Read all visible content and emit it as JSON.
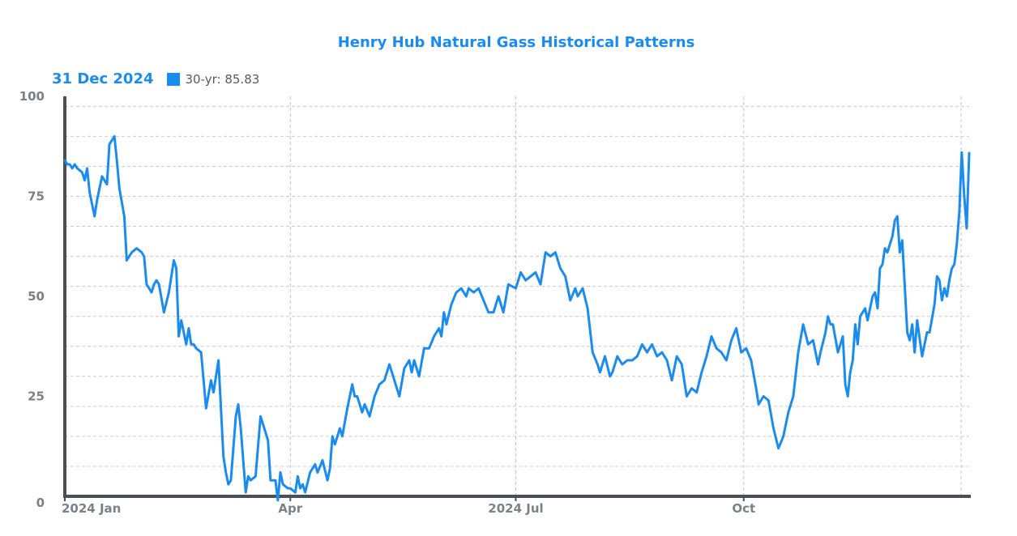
{
  "chart_data": {
    "type": "line",
    "title": "Henry Hub Natural Gass Historical Patterns",
    "legend": {
      "date": "31 Dec 2024",
      "label": "30-yr: 85.83",
      "color": "#1a8cf0",
      "placement": "top-left"
    },
    "ylim": [
      0,
      100
    ],
    "y_ticks": [
      0,
      25,
      50,
      75,
      100
    ],
    "grid": true,
    "x_range": [
      "2024-01-01",
      "2024-12-31"
    ],
    "x_ticks": [
      {
        "date": "2024-01-01",
        "label": "2024 Jan"
      },
      {
        "date": "2024-04-01",
        "label": "Apr"
      },
      {
        "date": "2024-07-01",
        "label": "2024 Jul"
      },
      {
        "date": "2024-10-01",
        "label": "Oct"
      }
    ],
    "minor_grid_dates": [
      "2024-02-01",
      "2024-03-01",
      "2024-05-01",
      "2024-06-01",
      "2024-08-01",
      "2024-09-01",
      "2024-11-01",
      "2024-12-01"
    ],
    "series": [
      {
        "name": "30-yr",
        "color": "#1a8cf0",
        "points": [
          [
            "2024-01-01",
            84
          ],
          [
            "2024-01-02",
            83
          ],
          [
            "2024-01-03",
            83
          ],
          [
            "2024-01-04",
            82
          ],
          [
            "2024-01-05",
            83
          ],
          [
            "2024-01-06",
            82
          ],
          [
            "2024-01-08",
            81
          ],
          [
            "2024-01-09",
            79
          ],
          [
            "2024-01-10",
            82
          ],
          [
            "2024-01-11",
            76
          ],
          [
            "2024-01-13",
            70
          ],
          [
            "2024-01-14",
            74
          ],
          [
            "2024-01-16",
            80
          ],
          [
            "2024-01-17",
            79
          ],
          [
            "2024-01-18",
            78
          ],
          [
            "2024-01-19",
            88
          ],
          [
            "2024-01-21",
            90
          ],
          [
            "2024-01-22",
            84
          ],
          [
            "2024-01-23",
            77
          ],
          [
            "2024-01-25",
            70
          ],
          [
            "2024-01-26",
            59
          ],
          [
            "2024-01-28",
            61
          ],
          [
            "2024-01-30",
            62
          ],
          [
            "2024-02-01",
            61
          ],
          [
            "2024-02-02",
            60
          ],
          [
            "2024-02-03",
            53
          ],
          [
            "2024-02-04",
            52
          ],
          [
            "2024-02-05",
            51
          ],
          [
            "2024-02-06",
            53
          ],
          [
            "2024-02-07",
            54
          ],
          [
            "2024-02-08",
            53
          ],
          [
            "2024-02-10",
            46
          ],
          [
            "2024-02-12",
            51
          ],
          [
            "2024-02-14",
            59
          ],
          [
            "2024-02-15",
            57
          ],
          [
            "2024-02-16",
            40
          ],
          [
            "2024-02-17",
            44
          ],
          [
            "2024-02-19",
            38
          ],
          [
            "2024-02-20",
            42
          ],
          [
            "2024-02-21",
            38
          ],
          [
            "2024-02-22",
            38
          ],
          [
            "2024-02-23",
            37
          ],
          [
            "2024-02-25",
            36
          ],
          [
            "2024-02-27",
            22
          ],
          [
            "2024-02-29",
            29
          ],
          [
            "2024-03-01",
            26
          ],
          [
            "2024-03-03",
            34
          ],
          [
            "2024-03-05",
            10
          ],
          [
            "2024-03-06",
            6
          ],
          [
            "2024-03-07",
            3
          ],
          [
            "2024-03-08",
            4
          ],
          [
            "2024-03-10",
            20
          ],
          [
            "2024-03-11",
            23
          ],
          [
            "2024-03-12",
            17
          ],
          [
            "2024-03-14",
            1
          ],
          [
            "2024-03-15",
            5
          ],
          [
            "2024-03-16",
            4
          ],
          [
            "2024-03-18",
            5
          ],
          [
            "2024-03-20",
            20
          ],
          [
            "2024-03-23",
            14
          ],
          [
            "2024-03-24",
            4
          ],
          [
            "2024-03-26",
            4
          ],
          [
            "2024-03-27",
            -1
          ],
          [
            "2024-03-28",
            6
          ],
          [
            "2024-03-29",
            3
          ],
          [
            "2024-03-31",
            2
          ],
          [
            "2024-04-01",
            2
          ],
          [
            "2024-04-03",
            1
          ],
          [
            "2024-04-04",
            5
          ],
          [
            "2024-04-05",
            2
          ],
          [
            "2024-04-06",
            3
          ],
          [
            "2024-04-07",
            1
          ],
          [
            "2024-04-09",
            6
          ],
          [
            "2024-04-11",
            8
          ],
          [
            "2024-04-12",
            6
          ],
          [
            "2024-04-14",
            9
          ],
          [
            "2024-04-16",
            4
          ],
          [
            "2024-04-17",
            7
          ],
          [
            "2024-04-18",
            15
          ],
          [
            "2024-04-19",
            13
          ],
          [
            "2024-04-21",
            17
          ],
          [
            "2024-04-22",
            15
          ],
          [
            "2024-04-24",
            22
          ],
          [
            "2024-04-26",
            28
          ],
          [
            "2024-04-27",
            25
          ],
          [
            "2024-04-28",
            25
          ],
          [
            "2024-04-30",
            21
          ],
          [
            "2024-05-01",
            23
          ],
          [
            "2024-05-03",
            20
          ],
          [
            "2024-05-05",
            25
          ],
          [
            "2024-05-07",
            28
          ],
          [
            "2024-05-09",
            29
          ],
          [
            "2024-05-11",
            33
          ],
          [
            "2024-05-13",
            29
          ],
          [
            "2024-05-15",
            25
          ],
          [
            "2024-05-17",
            32
          ],
          [
            "2024-05-19",
            34
          ],
          [
            "2024-05-20",
            31
          ],
          [
            "2024-05-21",
            34
          ],
          [
            "2024-05-23",
            30
          ],
          [
            "2024-05-25",
            37
          ],
          [
            "2024-05-27",
            37
          ],
          [
            "2024-05-29",
            40
          ],
          [
            "2024-05-31",
            42
          ],
          [
            "2024-06-01",
            40
          ],
          [
            "2024-06-02",
            46
          ],
          [
            "2024-06-03",
            43
          ],
          [
            "2024-06-05",
            48
          ],
          [
            "2024-06-07",
            51
          ],
          [
            "2024-06-09",
            52
          ],
          [
            "2024-06-11",
            50
          ],
          [
            "2024-06-12",
            52
          ],
          [
            "2024-06-14",
            51
          ],
          [
            "2024-06-16",
            52
          ],
          [
            "2024-06-18",
            49
          ],
          [
            "2024-06-20",
            46
          ],
          [
            "2024-06-22",
            46
          ],
          [
            "2024-06-24",
            50
          ],
          [
            "2024-06-26",
            46
          ],
          [
            "2024-06-28",
            53
          ],
          [
            "2024-07-01",
            52
          ],
          [
            "2024-07-03",
            56
          ],
          [
            "2024-07-05",
            54
          ],
          [
            "2024-07-07",
            55
          ],
          [
            "2024-07-09",
            56
          ],
          [
            "2024-07-11",
            53
          ],
          [
            "2024-07-13",
            61
          ],
          [
            "2024-07-15",
            60
          ],
          [
            "2024-07-17",
            61
          ],
          [
            "2024-07-19",
            57
          ],
          [
            "2024-07-21",
            55
          ],
          [
            "2024-07-23",
            49
          ],
          [
            "2024-07-25",
            52
          ],
          [
            "2024-07-26",
            50
          ],
          [
            "2024-07-28",
            52
          ],
          [
            "2024-07-30",
            47
          ],
          [
            "2024-08-01",
            36
          ],
          [
            "2024-08-03",
            33
          ],
          [
            "2024-08-04",
            31
          ],
          [
            "2024-08-06",
            35
          ],
          [
            "2024-08-08",
            30
          ],
          [
            "2024-08-09",
            31
          ],
          [
            "2024-08-11",
            35
          ],
          [
            "2024-08-13",
            33
          ],
          [
            "2024-08-15",
            34
          ],
          [
            "2024-08-17",
            34
          ],
          [
            "2024-08-19",
            35
          ],
          [
            "2024-08-21",
            38
          ],
          [
            "2024-08-23",
            36
          ],
          [
            "2024-08-25",
            38
          ],
          [
            "2024-08-27",
            35
          ],
          [
            "2024-08-29",
            36
          ],
          [
            "2024-08-31",
            34
          ],
          [
            "2024-09-02",
            29
          ],
          [
            "2024-09-04",
            35
          ],
          [
            "2024-09-06",
            33
          ],
          [
            "2024-09-08",
            25
          ],
          [
            "2024-09-10",
            27
          ],
          [
            "2024-09-12",
            26
          ],
          [
            "2024-09-14",
            31
          ],
          [
            "2024-09-16",
            35
          ],
          [
            "2024-09-18",
            40
          ],
          [
            "2024-09-20",
            37
          ],
          [
            "2024-09-22",
            36
          ],
          [
            "2024-09-24",
            34
          ],
          [
            "2024-09-26",
            39
          ],
          [
            "2024-09-28",
            42
          ],
          [
            "2024-09-30",
            36
          ],
          [
            "2024-10-02",
            37
          ],
          [
            "2024-10-04",
            34
          ],
          [
            "2024-10-06",
            27
          ],
          [
            "2024-10-07",
            23
          ],
          [
            "2024-10-09",
            25
          ],
          [
            "2024-10-11",
            24
          ],
          [
            "2024-10-13",
            17
          ],
          [
            "2024-10-15",
            12
          ],
          [
            "2024-10-17",
            15
          ],
          [
            "2024-10-19",
            21
          ],
          [
            "2024-10-21",
            25
          ],
          [
            "2024-10-23",
            36
          ],
          [
            "2024-10-25",
            43
          ],
          [
            "2024-10-27",
            38
          ],
          [
            "2024-10-29",
            39
          ],
          [
            "2024-10-31",
            33
          ],
          [
            "2024-11-01",
            36
          ],
          [
            "2024-11-03",
            41
          ],
          [
            "2024-11-04",
            45
          ],
          [
            "2024-11-05",
            43
          ],
          [
            "2024-11-06",
            43
          ],
          [
            "2024-11-08",
            36
          ],
          [
            "2024-11-10",
            40
          ],
          [
            "2024-11-11",
            28
          ],
          [
            "2024-11-12",
            25
          ],
          [
            "2024-11-13",
            31
          ],
          [
            "2024-11-14",
            34
          ],
          [
            "2024-11-15",
            43
          ],
          [
            "2024-11-16",
            38
          ],
          [
            "2024-11-17",
            45
          ],
          [
            "2024-11-19",
            47
          ],
          [
            "2024-11-20",
            44
          ],
          [
            "2024-11-21",
            47
          ],
          [
            "2024-11-22",
            50
          ],
          [
            "2024-11-23",
            51
          ],
          [
            "2024-11-24",
            47
          ],
          [
            "2024-11-25",
            57
          ],
          [
            "2024-11-26",
            58
          ],
          [
            "2024-11-27",
            62
          ],
          [
            "2024-11-28",
            61
          ],
          [
            "2024-11-30",
            65
          ],
          [
            "2024-12-01",
            69
          ],
          [
            "2024-12-02",
            70
          ],
          [
            "2024-12-03",
            61
          ],
          [
            "2024-12-04",
            64
          ],
          [
            "2024-12-06",
            41
          ],
          [
            "2024-12-07",
            39
          ],
          [
            "2024-12-08",
            43
          ],
          [
            "2024-12-09",
            36
          ],
          [
            "2024-12-10",
            44
          ],
          [
            "2024-12-12",
            35
          ],
          [
            "2024-12-14",
            41
          ],
          [
            "2024-12-15",
            41
          ],
          [
            "2024-12-17",
            48
          ],
          [
            "2024-12-18",
            55
          ],
          [
            "2024-12-19",
            54
          ],
          [
            "2024-12-20",
            49
          ],
          [
            "2024-12-21",
            52
          ],
          [
            "2024-12-22",
            50
          ],
          [
            "2024-12-23",
            54
          ],
          [
            "2024-12-24",
            57
          ],
          [
            "2024-12-25",
            58
          ],
          [
            "2024-12-26",
            63
          ],
          [
            "2024-12-27",
            71
          ],
          [
            "2024-12-28",
            86
          ],
          [
            "2024-12-29",
            75
          ],
          [
            "2024-12-30",
            67
          ],
          [
            "2024-12-31",
            85.83
          ]
        ]
      }
    ]
  }
}
